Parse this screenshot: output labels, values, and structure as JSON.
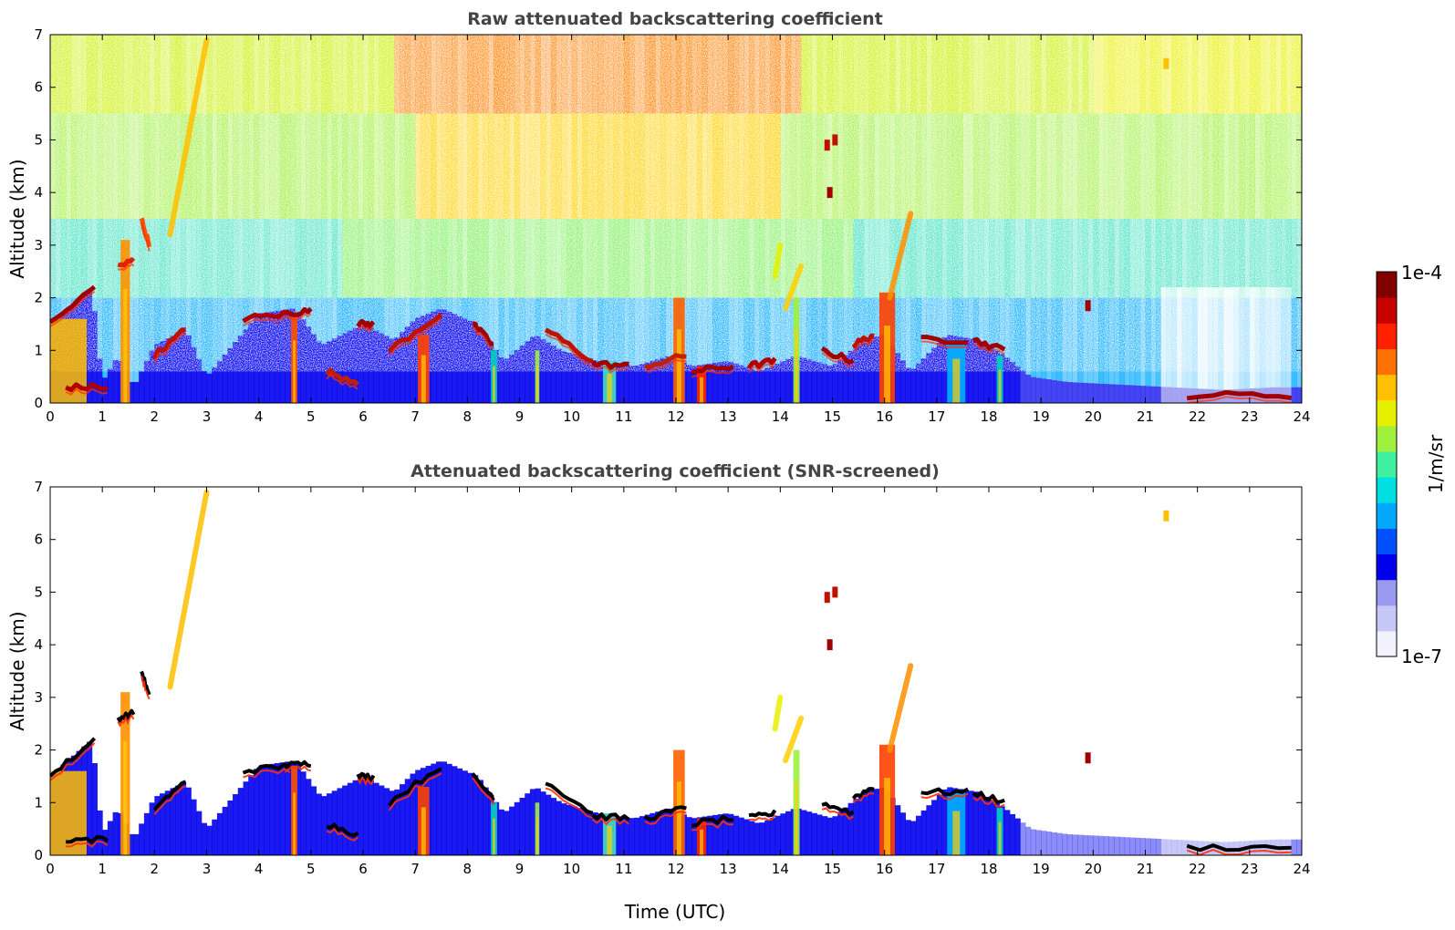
{
  "chart_data": [
    {
      "type": "heatmap",
      "title": "Raw attenuated backscattering coefficient",
      "ylabel": "Altitude (km)",
      "xlabel": "",
      "xlim": [
        0,
        24
      ],
      "ylim": [
        0,
        7
      ],
      "xticks": [
        0,
        1,
        2,
        3,
        4,
        5,
        6,
        7,
        8,
        9,
        10,
        11,
        12,
        13,
        14,
        15,
        16,
        17,
        18,
        19,
        20,
        21,
        22,
        23,
        24
      ],
      "yticks": [
        0,
        1,
        2,
        3,
        4,
        5,
        6,
        7
      ],
      "screened": false
    },
    {
      "type": "heatmap",
      "title": "Attenuated backscattering coefficient (SNR-screened)",
      "ylabel": "Altitude (km)",
      "xlabel": "Time (UTC)",
      "xlim": [
        0,
        24
      ],
      "ylim": [
        0,
        7
      ],
      "xticks": [
        0,
        1,
        2,
        3,
        4,
        5,
        6,
        7,
        8,
        9,
        10,
        11,
        12,
        13,
        14,
        15,
        16,
        17,
        18,
        19,
        20,
        21,
        22,
        23,
        24
      ],
      "yticks": [
        0,
        1,
        2,
        3,
        4,
        5,
        6,
        7
      ],
      "screened": true
    }
  ],
  "colorbar": {
    "label": "1/m/sr",
    "min_label": "1e-7",
    "max_label": "1e-4",
    "scale": "log",
    "colors": [
      "#f2f2ff",
      "#c8c8f8",
      "#9a9af2",
      "#0000ee",
      "#0050ff",
      "#00a8ff",
      "#00e0e0",
      "#40f0a0",
      "#a0f040",
      "#e8f000",
      "#ffc000",
      "#ff7000",
      "#ff2000",
      "#c80000",
      "#800000"
    ]
  },
  "features": {
    "boundary_layer_top_km": [
      [
        0,
        1.5
      ],
      [
        0.8,
        2.2
      ],
      [
        1.0,
        0.4
      ],
      [
        1.3,
        0.9
      ],
      [
        1.6,
        0.3
      ],
      [
        2.0,
        1.1
      ],
      [
        2.6,
        1.4
      ],
      [
        3.0,
        0.5
      ],
      [
        4.0,
        1.7
      ],
      [
        4.7,
        1.8
      ],
      [
        5.2,
        1.1
      ],
      [
        6.0,
        1.5
      ],
      [
        6.6,
        1.2
      ],
      [
        7.0,
        1.6
      ],
      [
        7.5,
        1.8
      ],
      [
        8.2,
        1.5
      ],
      [
        8.7,
        0.8
      ],
      [
        9.3,
        1.3
      ],
      [
        9.8,
        1.0
      ],
      [
        10.5,
        0.8
      ],
      [
        11.2,
        0.7
      ],
      [
        11.9,
        0.9
      ],
      [
        12.3,
        0.7
      ],
      [
        13.0,
        0.8
      ],
      [
        13.6,
        0.6
      ],
      [
        14.3,
        0.9
      ],
      [
        15.0,
        0.7
      ],
      [
        15.6,
        1.2
      ],
      [
        16.0,
        1.3
      ],
      [
        16.5,
        0.6
      ],
      [
        17.2,
        1.3
      ],
      [
        17.8,
        1.2
      ],
      [
        18.3,
        0.9
      ],
      [
        18.8,
        0.5
      ],
      [
        19.5,
        0.4
      ],
      [
        20.5,
        0.35
      ],
      [
        21.5,
        0.3
      ],
      [
        22.5,
        0.25
      ],
      [
        23.5,
        0.3
      ],
      [
        24,
        0.3
      ]
    ],
    "cloud_layers": [
      {
        "x0": 0.0,
        "x1": 0.85,
        "y_start": 1.5,
        "y_end": 2.2,
        "color": "#a00000"
      },
      {
        "x0": 0.3,
        "x1": 1.1,
        "y_start": 0.3,
        "y_end": 0.3,
        "color": "#b00000"
      },
      {
        "x0": 1.3,
        "x1": 1.6,
        "y_start": 2.6,
        "y_end": 2.7,
        "color": "#e02000"
      },
      {
        "x0": 1.75,
        "x1": 1.9,
        "y_start": 3.5,
        "y_end": 3.0,
        "color": "#ff5000"
      },
      {
        "x0": 2.0,
        "x1": 2.6,
        "y_start": 0.9,
        "y_end": 1.4,
        "color": "#c01000"
      },
      {
        "x0": 3.7,
        "x1": 4.6,
        "y_start": 1.6,
        "y_end": 1.7,
        "color": "#b00000"
      },
      {
        "x0": 4.5,
        "x1": 5.0,
        "y_start": 1.7,
        "y_end": 1.75,
        "color": "#a00000"
      },
      {
        "x0": 5.3,
        "x1": 5.9,
        "y_start": 0.6,
        "y_end": 0.4,
        "color": "#c02000"
      },
      {
        "x0": 5.9,
        "x1": 6.2,
        "y_start": 1.5,
        "y_end": 1.5,
        "color": "#a00000"
      },
      {
        "x0": 6.5,
        "x1": 7.5,
        "y_start": 1.0,
        "y_end": 1.7,
        "color": "#c01000"
      },
      {
        "x0": 8.1,
        "x1": 8.5,
        "y_start": 1.5,
        "y_end": 1.1,
        "color": "#a00000"
      },
      {
        "x0": 9.5,
        "x1": 10.4,
        "y_start": 1.4,
        "y_end": 0.8,
        "color": "#c01000"
      },
      {
        "x0": 10.4,
        "x1": 11.1,
        "y_start": 0.75,
        "y_end": 0.7,
        "color": "#a00000"
      },
      {
        "x0": 11.4,
        "x1": 12.2,
        "y_start": 0.7,
        "y_end": 0.9,
        "color": "#c02000"
      },
      {
        "x0": 12.3,
        "x1": 13.1,
        "y_start": 0.6,
        "y_end": 0.7,
        "color": "#a00000"
      },
      {
        "x0": 13.4,
        "x1": 13.9,
        "y_start": 0.7,
        "y_end": 0.8,
        "color": "#b00000"
      },
      {
        "x0": 14.8,
        "x1": 15.4,
        "y_start": 1.0,
        "y_end": 0.8,
        "color": "#a00000"
      },
      {
        "x0": 15.4,
        "x1": 15.8,
        "y_start": 1.1,
        "y_end": 1.3,
        "color": "#c01000"
      },
      {
        "x0": 16.7,
        "x1": 17.6,
        "y_start": 1.2,
        "y_end": 1.2,
        "color": "#a00000"
      },
      {
        "x0": 17.7,
        "x1": 18.3,
        "y_start": 1.2,
        "y_end": 1.0,
        "color": "#a00000"
      },
      {
        "x0": 21.8,
        "x1": 23.8,
        "y_start": 0.15,
        "y_end": 0.15,
        "color": "#a00000"
      }
    ],
    "plumes": [
      {
        "x": 1.35,
        "w": 0.18,
        "top": 3.1,
        "color": "#ff9000"
      },
      {
        "x": 4.62,
        "w": 0.12,
        "top": 1.7,
        "color": "#ff5000"
      },
      {
        "x": 7.05,
        "w": 0.22,
        "top": 1.3,
        "color": "#ff4000"
      },
      {
        "x": 8.45,
        "w": 0.12,
        "top": 1.0,
        "color": "#00d0c0"
      },
      {
        "x": 9.3,
        "w": 0.08,
        "top": 1.0,
        "color": "#a0f040"
      },
      {
        "x": 10.6,
        "w": 0.25,
        "top": 0.8,
        "color": "#40e0c0"
      },
      {
        "x": 11.95,
        "w": 0.22,
        "top": 2.0,
        "color": "#ff6000"
      },
      {
        "x": 12.4,
        "w": 0.18,
        "top": 0.7,
        "color": "#ff2000"
      },
      {
        "x": 14.25,
        "w": 0.12,
        "top": 2.0,
        "color": "#a0f040"
      },
      {
        "x": 15.9,
        "w": 0.3,
        "top": 2.1,
        "color": "#ff4000"
      },
      {
        "x": 17.2,
        "w": 0.35,
        "top": 1.2,
        "color": "#00b0ff"
      },
      {
        "x": 18.15,
        "w": 0.12,
        "top": 0.9,
        "color": "#00d0c0"
      }
    ],
    "cirrus_streaks": [
      {
        "x0": 2.3,
        "y0": 3.2,
        "x1": 3.0,
        "y1": 6.9,
        "color": "#ffc000"
      },
      {
        "x0": 16.1,
        "y0": 2.0,
        "x1": 16.5,
        "y1": 3.6,
        "color": "#ff9000"
      },
      {
        "x0": 14.1,
        "y0": 1.8,
        "x1": 14.4,
        "y1": 2.6,
        "color": "#ffd000"
      },
      {
        "x0": 13.9,
        "y0": 2.4,
        "x1": 14.0,
        "y1": 3.0,
        "color": "#e8f000"
      }
    ],
    "isolated_spots": [
      {
        "x": 14.95,
        "y": 4.0,
        "color": "#a00000"
      },
      {
        "x": 15.05,
        "y": 5.0,
        "color": "#c01000"
      },
      {
        "x": 14.9,
        "y": 4.9,
        "color": "#c01000"
      },
      {
        "x": 21.4,
        "y": 6.45,
        "color": "#ffc000"
      },
      {
        "x": 19.9,
        "y": 1.85,
        "color": "#a00000"
      }
    ]
  }
}
